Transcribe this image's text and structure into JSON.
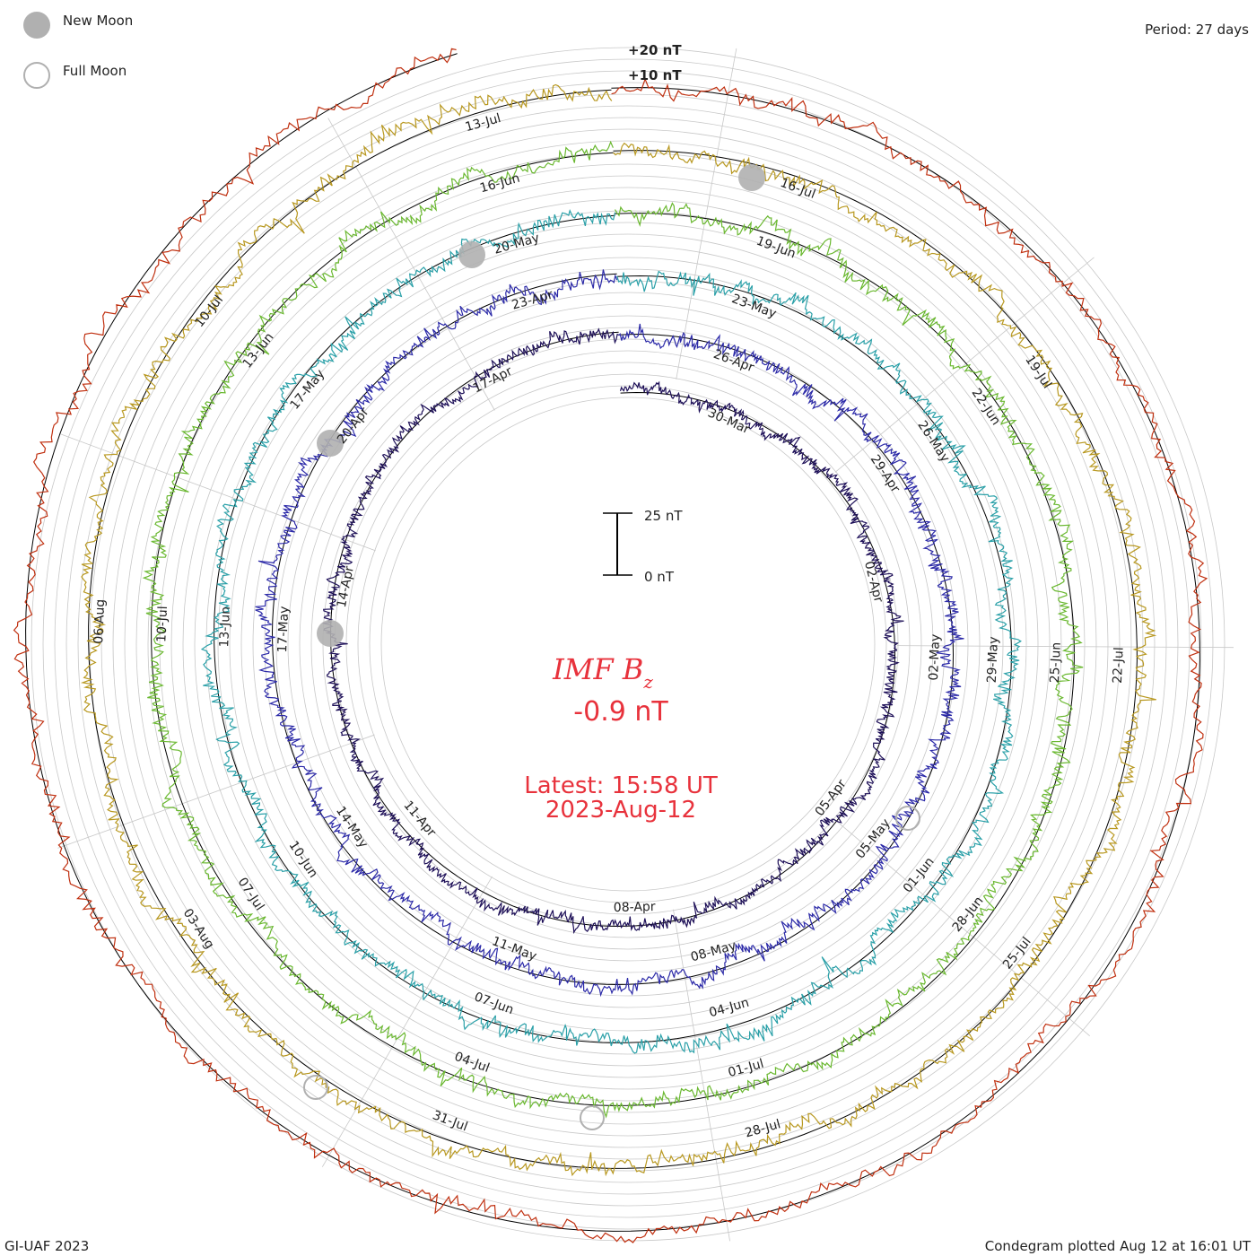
{
  "chart_data": {
    "type": "line",
    "title": "IMF B",
    "title_subscript": "z",
    "current_value": "-0.9 nT",
    "latest_time": "Latest: 15:58 UT",
    "latest_date": "2023-Aug-12",
    "period": "Period: 27 days",
    "footer_left": "GI-UAF 2023",
    "footer_right": "Condegram plotted Aug 12 at 16:01 UT",
    "scale_top_label": "25 nT",
    "scale_bottom_label": "0 nT",
    "ring_labels": [
      "+20 nT",
      "+10 nT"
    ],
    "legend": [
      {
        "label": "New Moon",
        "style": "filled"
      },
      {
        "label": "Full Moon",
        "style": "open"
      }
    ],
    "colors": {
      "accent_text": "#e8323c",
      "moon_fill": "#b0b0b0",
      "grid": "#c8c8c8"
    },
    "series": [
      {
        "color": "#1e1058",
        "amplitude_nT": 8,
        "date_labels": [
          "30-Mar",
          "02-Apr",
          "05-Apr",
          "08-Apr",
          "11-Apr",
          "14-Apr",
          "17-Apr"
        ]
      },
      {
        "color": "#2c2aa8",
        "amplitude_nT": 10,
        "date_labels": [
          "26-Apr",
          "29-Apr",
          "02-May",
          "05-May",
          "08-May",
          "11-May",
          "14-May",
          "17-May",
          "20-Apr",
          "23-Apr"
        ]
      },
      {
        "color": "#2aa0a8",
        "amplitude_nT": 10,
        "date_labels": [
          "23-May",
          "26-May",
          "29-May",
          "01-Jun",
          "04-Jun",
          "07-Jun",
          "10-Jun",
          "13-Jun",
          "17-May",
          "20-May"
        ]
      },
      {
        "color": "#6ab830",
        "amplitude_nT": 10,
        "date_labels": [
          "19-Jun",
          "22-Jun",
          "25-Jun",
          "28-Jun",
          "01-Jul",
          "04-Jul",
          "07-Jul",
          "10-Jul",
          "13-Jun",
          "16-Jun"
        ]
      },
      {
        "color": "#b89820",
        "amplitude_nT": 10,
        "date_labels": [
          "16-Jul",
          "19-Jul",
          "22-Jul",
          "25-Jul",
          "28-Jul",
          "31-Jul",
          "03-Aug",
          "06-Aug",
          "10-Jul",
          "13-Jul"
        ]
      },
      {
        "color": "#c03010",
        "amplitude_nT": 10,
        "date_labels": []
      }
    ]
  }
}
